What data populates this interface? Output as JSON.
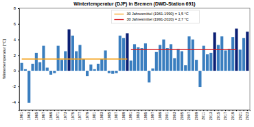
{
  "chart_data": {
    "type": "bar",
    "title": "Wintertemperatur (DJF) in Bremen (DWD-Station 691)",
    "y_label": "Wintertemperatur [°C]",
    "categories": [
      "1961",
      null,
      "1963",
      null,
      "1965",
      null,
      "1967",
      null,
      "1969",
      null,
      "1971",
      null,
      "1973",
      null,
      "1975",
      null,
      "1977",
      null,
      "1979",
      null,
      "1981",
      null,
      "1983",
      null,
      "1985",
      null,
      "1987",
      null,
      "1989",
      null,
      "1991",
      null,
      "1993",
      null,
      "1995",
      null,
      "1997",
      null,
      "1999",
      null,
      "2001",
      null,
      "2003",
      null,
      "2005",
      null,
      "2007",
      null,
      "2009",
      null,
      "2011",
      null,
      "2013",
      null,
      "2015",
      null,
      "2017",
      null,
      "2019",
      null,
      "2021",
      null,
      "2023"
    ],
    "values": [
      1.0,
      0.2,
      -4.1,
      0.9,
      2.3,
      1.1,
      3.2,
      0.4,
      -0.5,
      -0.3,
      3.2,
      1.4,
      2.5,
      5.3,
      4.5,
      2.5,
      3.3,
      1.5,
      -0.7,
      0.8,
      0.2,
      0.9,
      1.5,
      2.6,
      -0.3,
      -0.4,
      -0.3,
      4.5,
      4.2,
      4.8,
      1.3,
      3.4,
      3.0,
      2.9,
      3.5,
      -1.5,
      0.3,
      2.4,
      3.3,
      4.0,
      2.9,
      3.4,
      1.6,
      2.8,
      2.5,
      0.7,
      4.4,
      4.0,
      1.4,
      -2.1,
      3.2,
      2.1,
      2.3,
      4.9,
      3.3,
      4.4,
      2.6,
      2.8,
      4.3,
      5.4,
      2.7,
      4.2,
      5.0
    ],
    "colors": [
      "#3a7ebf",
      "#3a7ebf",
      "#3a7ebf",
      "#3a7ebf",
      "#3a7ebf",
      "#3a7ebf",
      "#3a7ebf",
      "#3a7ebf",
      "#3a7ebf",
      "#3a7ebf",
      "#3a7ebf",
      "#3a7ebf",
      "#3a7ebf",
      "#0b1f74",
      "#3a7ebf",
      "#3a7ebf",
      "#3a7ebf",
      "#3a7ebf",
      "#3a7ebf",
      "#3a7ebf",
      "#3a7ebf",
      "#3a7ebf",
      "#3a7ebf",
      "#3a7ebf",
      "#3a7ebf",
      "#3a7ebf",
      "#3a7ebf",
      "#3a7ebf",
      "#3a7ebf",
      "#0b1f74",
      "#3a7ebf",
      "#3a7ebf",
      "#3a7ebf",
      "#3a7ebf",
      "#3a7ebf",
      "#3a7ebf",
      "#3a7ebf",
      "#3a7ebf",
      "#3a7ebf",
      "#3a7ebf",
      "#3a7ebf",
      "#3a7ebf",
      "#3a7ebf",
      "#3a7ebf",
      "#3a7ebf",
      "#3a7ebf",
      "#3a7ebf",
      "#3a7ebf",
      "#3a7ebf",
      "#3a7ebf",
      "#3a7ebf",
      "#3a7ebf",
      "#3a7ebf",
      "#0b1f74",
      "#3a7ebf",
      "#3a7ebf",
      "#3a7ebf",
      "#3a7ebf",
      "#3a7ebf",
      "#0b1f74",
      "#3a7ebf",
      "#3a7ebf",
      "#0b1f74"
    ],
    "series": [
      {
        "name": "30 Jahresmittel (1961-1990) = 1,5 °C",
        "type": "line",
        "color": "#f5a21b",
        "values": [
          1.5,
          1.5,
          1.5,
          1.5,
          1.5,
          1.5,
          1.5,
          1.5,
          1.5,
          1.5,
          1.5,
          1.5,
          1.5,
          1.5,
          1.5,
          1.5,
          1.5,
          1.5,
          1.5,
          1.5,
          1.5,
          1.5,
          1.5,
          1.5,
          1.5,
          1.5,
          1.5,
          1.5,
          1.5,
          1.5,
          null,
          null,
          null,
          null,
          null,
          null,
          null,
          null,
          null,
          null,
          null,
          null,
          null,
          null,
          null,
          null,
          null,
          null,
          null,
          null,
          null,
          null,
          null,
          null,
          null,
          null,
          null,
          null,
          null,
          null,
          null,
          null,
          null
        ]
      },
      {
        "name": "30 Jahresmittel (1991-2020) = 2,7 °C",
        "type": "line",
        "color": "#d7191c",
        "values": [
          null,
          null,
          null,
          null,
          null,
          null,
          null,
          null,
          null,
          null,
          null,
          null,
          null,
          null,
          null,
          null,
          null,
          null,
          null,
          null,
          null,
          null,
          null,
          null,
          null,
          null,
          null,
          null,
          null,
          null,
          2.7,
          2.7,
          2.7,
          2.7,
          2.7,
          2.7,
          2.7,
          2.7,
          2.7,
          2.7,
          2.7,
          2.7,
          2.7,
          2.7,
          2.7,
          2.7,
          2.7,
          2.7,
          2.7,
          2.7,
          2.7,
          2.7,
          2.7,
          2.7,
          2.7,
          2.7,
          2.7,
          2.7,
          2.7,
          2.7,
          null,
          null,
          null
        ]
      }
    ],
    "ylim": [
      -5,
      8
    ],
    "yticks": [
      -4,
      -2,
      0,
      2,
      4,
      6,
      8
    ],
    "grid": false,
    "legend": "top"
  }
}
